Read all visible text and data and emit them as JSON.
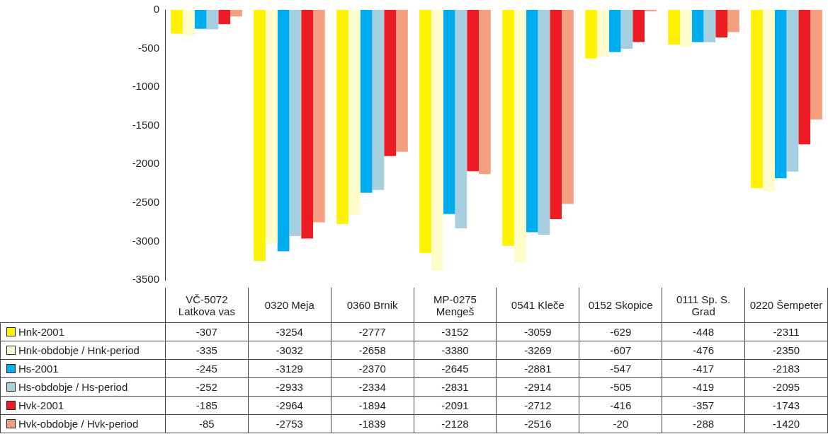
{
  "chart_data": {
    "type": "bar",
    "categories": [
      "VČ-5072 Latkova vas",
      "0320 Meja",
      "0360 Brnik",
      "MP-0275 Mengeš",
      "0541 Kleče",
      "0152 Skopice",
      "0111 Sp. S. Grad",
      "0220 Šempeter"
    ],
    "series": [
      {
        "name": "Hnk-2001",
        "color": "#fff200",
        "values": [
          -307,
          -3254,
          -2777,
          -3152,
          -3059,
          -629,
          -448,
          -2311
        ]
      },
      {
        "name": "Hnk-obdobje / Hnk-period",
        "color": "#fffccc",
        "values": [
          -335,
          -3032,
          -2658,
          -3380,
          -3269,
          -607,
          -476,
          -2350
        ]
      },
      {
        "name": "Hs-2001",
        "color": "#00aeef",
        "values": [
          -245,
          -3129,
          -2370,
          -2645,
          -2881,
          -547,
          -417,
          -2183
        ]
      },
      {
        "name": "Hs-obdobje / Hs-period",
        "color": "#a6cfe0",
        "values": [
          -252,
          -2933,
          -2334,
          -2831,
          -2914,
          -505,
          -419,
          -2095
        ]
      },
      {
        "name": "Hvk-2001",
        "color": "#ed1c24",
        "values": [
          -185,
          -2964,
          -1894,
          -2091,
          -2712,
          -416,
          -357,
          -1743
        ]
      },
      {
        "name": "Hvk-obdobje / Hvk-period",
        "color": "#f4a080",
        "values": [
          -85,
          -2753,
          -1839,
          -2128,
          -2516,
          -20,
          -288,
          -1420
        ]
      }
    ],
    "ylim": [
      -3500,
      0
    ],
    "yticks": [
      -3500,
      -3000,
      -2500,
      -2000,
      -1500,
      -1000,
      -500,
      0
    ],
    "grid": false,
    "legend": "bottom",
    "data_labels": true
  }
}
